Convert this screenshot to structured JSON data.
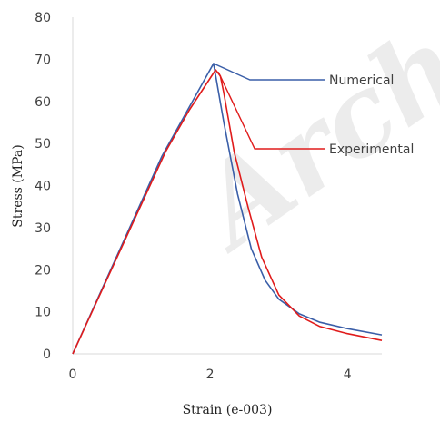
{
  "chart_data": {
    "type": "line",
    "xlabel": "Strain (e-003)",
    "ylabel": "Stress (MPa)",
    "xlim": [
      0,
      4.5
    ],
    "ylim": [
      0,
      80
    ],
    "x_ticks": [
      0,
      2,
      4
    ],
    "y_ticks": [
      0,
      10,
      20,
      30,
      40,
      50,
      60,
      70,
      80
    ],
    "x_tick_labels": [
      "0",
      "2",
      "4"
    ],
    "y_tick_labels": [
      "0",
      "10",
      "20",
      "30",
      "40",
      "50",
      "60",
      "70",
      "80"
    ],
    "grid": false,
    "legend_position": "right",
    "series": [
      {
        "name": "Numerical",
        "color": "#3a5ea8",
        "points": [
          [
            0,
            0
          ],
          [
            1.3,
            47
          ],
          [
            2.05,
            69
          ],
          [
            2.2,
            55
          ],
          [
            2.4,
            38
          ],
          [
            2.6,
            25
          ],
          [
            2.8,
            17.5
          ],
          [
            3.0,
            13
          ],
          [
            3.3,
            9.5
          ],
          [
            3.6,
            7.5
          ],
          [
            4.0,
            6
          ],
          [
            4.5,
            4.5
          ]
        ]
      },
      {
        "name": "Experimental",
        "color": "#e01b1b",
        "points": [
          [
            0,
            0
          ],
          [
            1.35,
            48
          ],
          [
            1.7,
            58
          ],
          [
            2.08,
            67.5
          ],
          [
            2.15,
            66
          ],
          [
            2.2,
            62
          ],
          [
            2.35,
            48
          ],
          [
            2.55,
            35
          ],
          [
            2.75,
            23
          ],
          [
            3.0,
            14
          ],
          [
            3.3,
            9
          ],
          [
            3.6,
            6.5
          ],
          [
            4.0,
            4.8
          ],
          [
            4.5,
            3.2
          ]
        ]
      }
    ]
  },
  "watermark": "Arch"
}
